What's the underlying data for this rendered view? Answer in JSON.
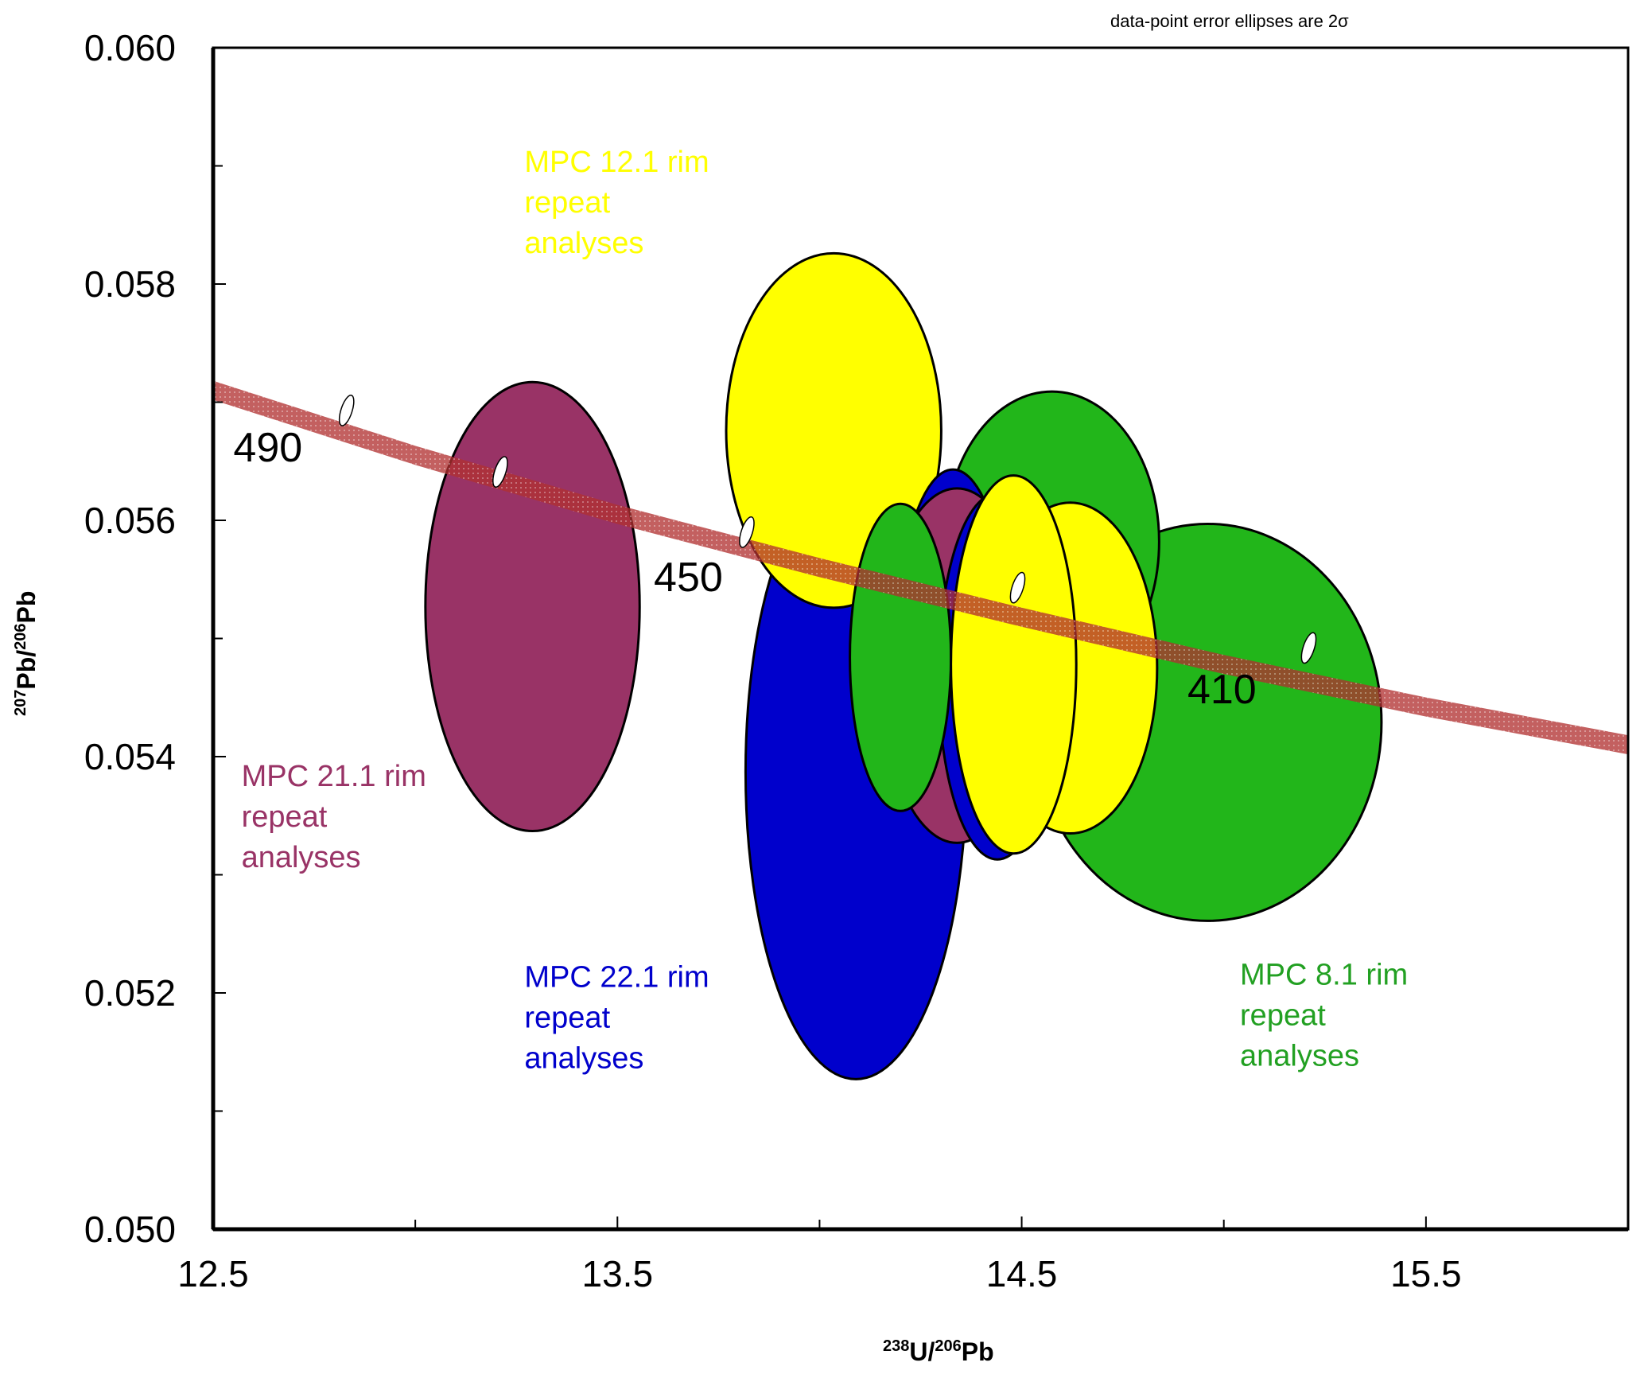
{
  "chart_data": {
    "type": "scatter",
    "subtype": "concordia-error-ellipses",
    "note": "data-point error ellipses are 2σ",
    "xlabel": {
      "sup1": "238",
      "main1": "U/",
      "sup2": "206",
      "main2": "Pb"
    },
    "ylabel": {
      "sup1": "207",
      "main1": "Pb/",
      "sup2": "206",
      "main2": "Pb"
    },
    "xlim": [
      12.5,
      16.0
    ],
    "ylim": [
      0.05,
      0.06
    ],
    "x_ticks": [
      12.5,
      13.0,
      13.5,
      14.0,
      14.5,
      15.0,
      15.5
    ],
    "x_tick_labels": [
      "12.5",
      "13.5",
      "14.5",
      "15.5"
    ],
    "x_tick_label_values": [
      12.5,
      13.5,
      14.5,
      15.5
    ],
    "y_ticks": [
      0.05,
      0.051,
      0.052,
      0.053,
      0.054,
      0.055,
      0.056,
      0.057,
      0.058,
      0.059,
      0.06
    ],
    "y_tick_labels": [
      "0.050",
      "0.052",
      "0.054",
      "0.056",
      "0.058",
      "0.060"
    ],
    "y_tick_label_values": [
      0.05,
      0.052,
      0.054,
      0.056,
      0.058,
      0.06
    ],
    "grid": false,
    "concordia": {
      "color": "#a83232",
      "points": [
        {
          "x": 12.5,
          "y": 0.0571
        },
        {
          "x": 13.0,
          "y": 0.05655
        },
        {
          "x": 13.5,
          "y": 0.05605
        },
        {
          "x": 14.0,
          "y": 0.0556
        },
        {
          "x": 14.5,
          "y": 0.05518
        },
        {
          "x": 15.0,
          "y": 0.05478
        },
        {
          "x": 15.5,
          "y": 0.05442
        },
        {
          "x": 16.0,
          "y": 0.0541
        }
      ],
      "age_markers": [
        {
          "age": 490,
          "x": 12.83,
          "y": 0.05693
        },
        {
          "age": 470,
          "x": 13.21,
          "y": 0.05641
        },
        {
          "age": 450,
          "x": 13.82,
          "y": 0.0559
        },
        {
          "age": 430,
          "x": 14.49,
          "y": 0.05543
        },
        {
          "age": 410,
          "x": 15.21,
          "y": 0.05492
        }
      ],
      "age_labels": [
        {
          "text": "490",
          "x": 12.55,
          "y": 0.0565
        },
        {
          "text": "450",
          "x": 13.59,
          "y": 0.0554
        },
        {
          "text": "410",
          "x": 14.91,
          "y": 0.05445
        }
      ]
    },
    "series": [
      {
        "name": "MPC 21.1 rim repeat analyses",
        "color": "#993366",
        "label_lines": [
          "MPC 21.1 rim",
          "repeat",
          "analyses"
        ],
        "label_pos": {
          "x": 12.57,
          "y": 0.05375
        },
        "ellipses": [
          {
            "cx": 13.29,
            "cy": 0.05527,
            "rx": 0.265,
            "ry": 0.0019
          },
          {
            "cx": 14.34,
            "cy": 0.05477,
            "rx": 0.19,
            "ry": 0.0015
          }
        ]
      },
      {
        "name": "MPC 12.1 rim repeat analyses",
        "color": "#ffff00",
        "label_lines": [
          "MPC 12.1 rim",
          "repeat",
          "analyses"
        ],
        "label_pos": {
          "x": 13.27,
          "y": 0.05895
        },
        "ellipses": [
          {
            "cx": 14.035,
            "cy": 0.05676,
            "rx": 0.266,
            "ry": 0.0015
          },
          {
            "cx": 14.62,
            "cy": 0.05475,
            "rx": 0.215,
            "ry": 0.0014
          },
          {
            "cx": 14.48,
            "cy": 0.05478,
            "rx": 0.155,
            "ry": 0.0016
          }
        ]
      },
      {
        "name": "MPC 22.1 rim repeat analyses",
        "color": "#0000cc",
        "label_lines": [
          "MPC 22.1 rim",
          "repeat",
          "analyses"
        ],
        "label_pos": {
          "x": 13.27,
          "y": 0.05205
        },
        "ellipses": [
          {
            "cx": 14.09,
            "cy": 0.05387,
            "rx": 0.273,
            "ry": 0.0026
          },
          {
            "cx": 14.33,
            "cy": 0.05488,
            "rx": 0.14,
            "ry": 0.00155
          },
          {
            "cx": 14.44,
            "cy": 0.05468,
            "rx": 0.146,
            "ry": 0.00155
          }
        ]
      },
      {
        "name": "MPC 8.1 rim repeat analyses",
        "color": "#22b61a",
        "label_lines": [
          "MPC 8.1 rim",
          "repeat",
          "analyses"
        ],
        "label_pos": {
          "x": 15.04,
          "y": 0.05207
        },
        "ellipses": [
          {
            "cx": 14.575,
            "cy": 0.05582,
            "rx": 0.265,
            "ry": 0.00127
          },
          {
            "cx": 14.96,
            "cy": 0.05429,
            "rx": 0.43,
            "ry": 0.00168
          },
          {
            "cx": 14.2,
            "cy": 0.05484,
            "rx": 0.125,
            "ry": 0.0013
          }
        ]
      }
    ],
    "draw_order": [
      [
        0,
        0
      ],
      [
        2,
        0
      ],
      [
        1,
        0
      ],
      [
        3,
        1
      ],
      [
        3,
        0
      ],
      [
        2,
        1
      ],
      [
        0,
        1
      ],
      [
        1,
        1
      ],
      [
        2,
        2
      ],
      [
        3,
        2
      ],
      [
        1,
        2
      ]
    ],
    "label_colors": {
      "magenta": "#993366",
      "yellow": "#ffff00",
      "blue": "#0000cc",
      "green": "#22a022"
    }
  }
}
